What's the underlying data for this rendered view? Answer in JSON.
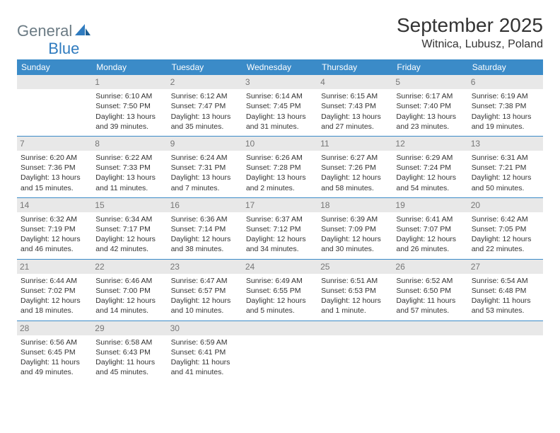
{
  "logo": {
    "gen": "General",
    "blue": "Blue"
  },
  "title": "September 2025",
  "location": "Witnica, Lubusz, Poland",
  "weekday_labels": [
    "Sunday",
    "Monday",
    "Tuesday",
    "Wednesday",
    "Thursday",
    "Friday",
    "Saturday"
  ],
  "colors": {
    "header_bg": "#3b8bc8",
    "header_fg": "#ffffff",
    "daynum_bg": "#e8e8e8",
    "daynum_fg": "#777777",
    "border": "#3b8bc8",
    "text": "#333333",
    "logo_gray": "#6b7b84",
    "logo_blue": "#2f7bbf"
  },
  "weeks": [
    [
      {
        "n": "",
        "sunrise": "",
        "sunset": "",
        "daylight": ""
      },
      {
        "n": "1",
        "sunrise": "Sunrise: 6:10 AM",
        "sunset": "Sunset: 7:50 PM",
        "daylight": "Daylight: 13 hours and 39 minutes."
      },
      {
        "n": "2",
        "sunrise": "Sunrise: 6:12 AM",
        "sunset": "Sunset: 7:47 PM",
        "daylight": "Daylight: 13 hours and 35 minutes."
      },
      {
        "n": "3",
        "sunrise": "Sunrise: 6:14 AM",
        "sunset": "Sunset: 7:45 PM",
        "daylight": "Daylight: 13 hours and 31 minutes."
      },
      {
        "n": "4",
        "sunrise": "Sunrise: 6:15 AM",
        "sunset": "Sunset: 7:43 PM",
        "daylight": "Daylight: 13 hours and 27 minutes."
      },
      {
        "n": "5",
        "sunrise": "Sunrise: 6:17 AM",
        "sunset": "Sunset: 7:40 PM",
        "daylight": "Daylight: 13 hours and 23 minutes."
      },
      {
        "n": "6",
        "sunrise": "Sunrise: 6:19 AM",
        "sunset": "Sunset: 7:38 PM",
        "daylight": "Daylight: 13 hours and 19 minutes."
      }
    ],
    [
      {
        "n": "7",
        "sunrise": "Sunrise: 6:20 AM",
        "sunset": "Sunset: 7:36 PM",
        "daylight": "Daylight: 13 hours and 15 minutes."
      },
      {
        "n": "8",
        "sunrise": "Sunrise: 6:22 AM",
        "sunset": "Sunset: 7:33 PM",
        "daylight": "Daylight: 13 hours and 11 minutes."
      },
      {
        "n": "9",
        "sunrise": "Sunrise: 6:24 AM",
        "sunset": "Sunset: 7:31 PM",
        "daylight": "Daylight: 13 hours and 7 minutes."
      },
      {
        "n": "10",
        "sunrise": "Sunrise: 6:26 AM",
        "sunset": "Sunset: 7:28 PM",
        "daylight": "Daylight: 13 hours and 2 minutes."
      },
      {
        "n": "11",
        "sunrise": "Sunrise: 6:27 AM",
        "sunset": "Sunset: 7:26 PM",
        "daylight": "Daylight: 12 hours and 58 minutes."
      },
      {
        "n": "12",
        "sunrise": "Sunrise: 6:29 AM",
        "sunset": "Sunset: 7:24 PM",
        "daylight": "Daylight: 12 hours and 54 minutes."
      },
      {
        "n": "13",
        "sunrise": "Sunrise: 6:31 AM",
        "sunset": "Sunset: 7:21 PM",
        "daylight": "Daylight: 12 hours and 50 minutes."
      }
    ],
    [
      {
        "n": "14",
        "sunrise": "Sunrise: 6:32 AM",
        "sunset": "Sunset: 7:19 PM",
        "daylight": "Daylight: 12 hours and 46 minutes."
      },
      {
        "n": "15",
        "sunrise": "Sunrise: 6:34 AM",
        "sunset": "Sunset: 7:17 PM",
        "daylight": "Daylight: 12 hours and 42 minutes."
      },
      {
        "n": "16",
        "sunrise": "Sunrise: 6:36 AM",
        "sunset": "Sunset: 7:14 PM",
        "daylight": "Daylight: 12 hours and 38 minutes."
      },
      {
        "n": "17",
        "sunrise": "Sunrise: 6:37 AM",
        "sunset": "Sunset: 7:12 PM",
        "daylight": "Daylight: 12 hours and 34 minutes."
      },
      {
        "n": "18",
        "sunrise": "Sunrise: 6:39 AM",
        "sunset": "Sunset: 7:09 PM",
        "daylight": "Daylight: 12 hours and 30 minutes."
      },
      {
        "n": "19",
        "sunrise": "Sunrise: 6:41 AM",
        "sunset": "Sunset: 7:07 PM",
        "daylight": "Daylight: 12 hours and 26 minutes."
      },
      {
        "n": "20",
        "sunrise": "Sunrise: 6:42 AM",
        "sunset": "Sunset: 7:05 PM",
        "daylight": "Daylight: 12 hours and 22 minutes."
      }
    ],
    [
      {
        "n": "21",
        "sunrise": "Sunrise: 6:44 AM",
        "sunset": "Sunset: 7:02 PM",
        "daylight": "Daylight: 12 hours and 18 minutes."
      },
      {
        "n": "22",
        "sunrise": "Sunrise: 6:46 AM",
        "sunset": "Sunset: 7:00 PM",
        "daylight": "Daylight: 12 hours and 14 minutes."
      },
      {
        "n": "23",
        "sunrise": "Sunrise: 6:47 AM",
        "sunset": "Sunset: 6:57 PM",
        "daylight": "Daylight: 12 hours and 10 minutes."
      },
      {
        "n": "24",
        "sunrise": "Sunrise: 6:49 AM",
        "sunset": "Sunset: 6:55 PM",
        "daylight": "Daylight: 12 hours and 5 minutes."
      },
      {
        "n": "25",
        "sunrise": "Sunrise: 6:51 AM",
        "sunset": "Sunset: 6:53 PM",
        "daylight": "Daylight: 12 hours and 1 minute."
      },
      {
        "n": "26",
        "sunrise": "Sunrise: 6:52 AM",
        "sunset": "Sunset: 6:50 PM",
        "daylight": "Daylight: 11 hours and 57 minutes."
      },
      {
        "n": "27",
        "sunrise": "Sunrise: 6:54 AM",
        "sunset": "Sunset: 6:48 PM",
        "daylight": "Daylight: 11 hours and 53 minutes."
      }
    ],
    [
      {
        "n": "28",
        "sunrise": "Sunrise: 6:56 AM",
        "sunset": "Sunset: 6:45 PM",
        "daylight": "Daylight: 11 hours and 49 minutes."
      },
      {
        "n": "29",
        "sunrise": "Sunrise: 6:58 AM",
        "sunset": "Sunset: 6:43 PM",
        "daylight": "Daylight: 11 hours and 45 minutes."
      },
      {
        "n": "30",
        "sunrise": "Sunrise: 6:59 AM",
        "sunset": "Sunset: 6:41 PM",
        "daylight": "Daylight: 11 hours and 41 minutes."
      },
      {
        "n": "",
        "sunrise": "",
        "sunset": "",
        "daylight": ""
      },
      {
        "n": "",
        "sunrise": "",
        "sunset": "",
        "daylight": ""
      },
      {
        "n": "",
        "sunrise": "",
        "sunset": "",
        "daylight": ""
      },
      {
        "n": "",
        "sunrise": "",
        "sunset": "",
        "daylight": ""
      }
    ]
  ]
}
